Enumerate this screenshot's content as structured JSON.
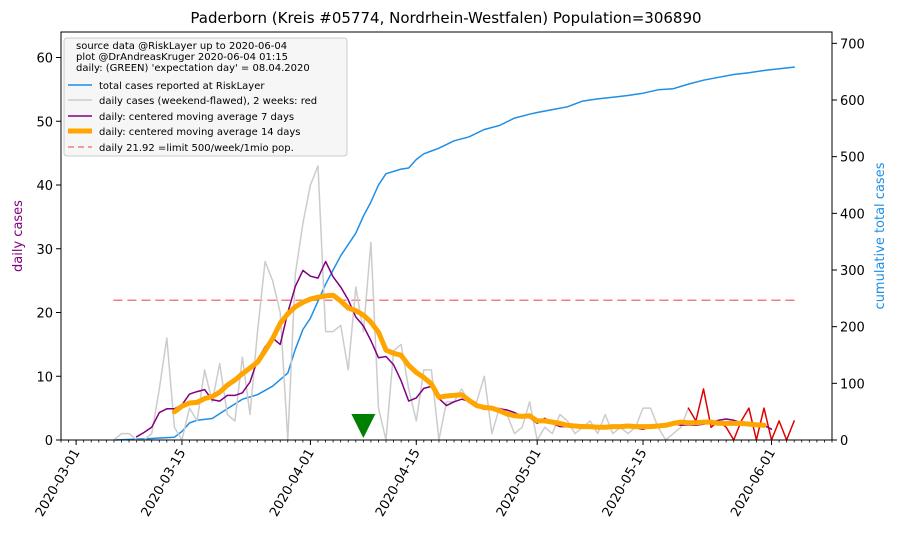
{
  "chart_data": {
    "type": "line",
    "title": "Paderborn (Kreis #05774, Nordrhein-Westfalen) Population=306890",
    "ylabel_left": "daily cases",
    "ylabel_right": "cumulative total cases",
    "xlim": [
      "2020-02-28",
      "2020-06-09"
    ],
    "ylim_left": [
      0,
      64
    ],
    "ylim_right": [
      0,
      720
    ],
    "x_ticks": [
      "2020-03-01",
      "2020-03-15",
      "2020-04-01",
      "2020-04-15",
      "2020-05-01",
      "2020-05-15",
      "2020-06-01"
    ],
    "y_ticks_left": [
      0,
      10,
      20,
      30,
      40,
      50,
      60
    ],
    "y_ticks_right": [
      0,
      100,
      200,
      300,
      400,
      500,
      600,
      700
    ],
    "legend_placement": "top-left",
    "legend_text": [
      "source data @RiskLayer up to 2020-06-04",
      "plot @DrAndreasKruger 2020-06-04 01:15",
      "daily: (GREEN) 'expectation day' = 08.04.2020"
    ],
    "expectation_day": "2020-04-08",
    "colors": {
      "total": "#1e8ee6",
      "daily": "#cccccc",
      "daily_recent": "#e00000",
      "ma7": "#800080",
      "ma14": "#ffa500",
      "limit": "#f08080",
      "marker": "#008000",
      "left_label": "#800080",
      "right_label": "#1e8ee6"
    },
    "series": [
      {
        "name": "total cases reported at RiskLayer",
        "axis": "right",
        "dates": [
          "2020-03-06",
          "2020-03-10",
          "2020-03-14",
          "2020-03-15",
          "2020-03-16",
          "2020-03-17",
          "2020-03-19",
          "2020-03-21",
          "2020-03-23",
          "2020-03-25",
          "2020-03-27",
          "2020-03-29",
          "2020-03-30",
          "2020-03-31",
          "2020-04-01",
          "2020-04-02",
          "2020-04-03",
          "2020-04-04",
          "2020-04-05",
          "2020-04-06",
          "2020-04-07",
          "2020-04-08",
          "2020-04-09",
          "2020-04-10",
          "2020-04-11",
          "2020-04-13",
          "2020-04-14",
          "2020-04-15",
          "2020-04-16",
          "2020-04-17",
          "2020-04-18",
          "2020-04-20",
          "2020-04-22",
          "2020-04-24",
          "2020-04-26",
          "2020-04-28",
          "2020-04-30",
          "2020-05-01",
          "2020-05-03",
          "2020-05-05",
          "2020-05-07",
          "2020-05-09",
          "2020-05-11",
          "2020-05-13",
          "2020-05-15",
          "2020-05-17",
          "2020-05-19",
          "2020-05-21",
          "2020-05-23",
          "2020-05-25",
          "2020-05-27",
          "2020-05-29",
          "2020-05-31",
          "2020-06-02",
          "2020-06-04"
        ],
        "values": [
          0,
          2,
          5,
          15,
          30,
          35,
          38,
          55,
          72,
          80,
          95,
          118,
          160,
          195,
          215,
          245,
          275,
          300,
          325,
          345,
          365,
          395,
          420,
          450,
          470,
          478,
          480,
          495,
          505,
          510,
          515,
          528,
          535,
          548,
          555,
          568,
          575,
          578,
          583,
          588,
          598,
          602,
          605,
          608,
          612,
          618,
          620,
          628,
          635,
          640,
          645,
          648,
          652,
          655,
          658
        ]
      },
      {
        "name": "daily cases (weekend-flawed), 2 weeks: red",
        "axis": "left",
        "dates": [
          "2020-03-06",
          "2020-03-07",
          "2020-03-08",
          "2020-03-09",
          "2020-03-10",
          "2020-03-11",
          "2020-03-12",
          "2020-03-13",
          "2020-03-14",
          "2020-03-15",
          "2020-03-16",
          "2020-03-17",
          "2020-03-18",
          "2020-03-19",
          "2020-03-20",
          "2020-03-21",
          "2020-03-22",
          "2020-03-23",
          "2020-03-24",
          "2020-03-25",
          "2020-03-26",
          "2020-03-27",
          "2020-03-28",
          "2020-03-29",
          "2020-03-30",
          "2020-03-31",
          "2020-04-01",
          "2020-04-02",
          "2020-04-03",
          "2020-04-04",
          "2020-04-05",
          "2020-04-06",
          "2020-04-07",
          "2020-04-08",
          "2020-04-09",
          "2020-04-10",
          "2020-04-11",
          "2020-04-12",
          "2020-04-13",
          "2020-04-14",
          "2020-04-15",
          "2020-04-16",
          "2020-04-17",
          "2020-04-18",
          "2020-04-19",
          "2020-04-20",
          "2020-04-21",
          "2020-04-22",
          "2020-04-23",
          "2020-04-24",
          "2020-04-25",
          "2020-04-26",
          "2020-04-27",
          "2020-04-28",
          "2020-04-29",
          "2020-04-30",
          "2020-05-01",
          "2020-05-02",
          "2020-05-03",
          "2020-05-04",
          "2020-05-05",
          "2020-05-06",
          "2020-05-07",
          "2020-05-08",
          "2020-05-09",
          "2020-05-10",
          "2020-05-11",
          "2020-05-12",
          "2020-05-13",
          "2020-05-14",
          "2020-05-15",
          "2020-05-16",
          "2020-05-17",
          "2020-05-18",
          "2020-05-19",
          "2020-05-20",
          "2020-05-21"
        ],
        "values": [
          0,
          1,
          1,
          0,
          0,
          1,
          8,
          16,
          2,
          0,
          5,
          3,
          11,
          6,
          12,
          4,
          3,
          13,
          4,
          17,
          28,
          25,
          20,
          0,
          26,
          34,
          40,
          43,
          17,
          17,
          18,
          11,
          24,
          17,
          31,
          5,
          0,
          14,
          15,
          8,
          3,
          11,
          11,
          0,
          6,
          6,
          8,
          6,
          6,
          10,
          1,
          5,
          4,
          1,
          2,
          6,
          0,
          2,
          1,
          4,
          3,
          1,
          2,
          3,
          1,
          4,
          1,
          2,
          1,
          2,
          5,
          5,
          2,
          0,
          1,
          2,
          5
        ]
      },
      {
        "name": "daily cases (weekend-flawed), 2 weeks: red",
        "axis": "left",
        "dates": [
          "2020-05-21",
          "2020-05-22",
          "2020-05-23",
          "2020-05-24",
          "2020-05-25",
          "2020-05-26",
          "2020-05-27",
          "2020-05-28",
          "2020-05-29",
          "2020-05-30",
          "2020-05-31",
          "2020-06-01",
          "2020-06-02",
          "2020-06-03",
          "2020-06-04"
        ],
        "values": [
          5,
          3,
          8,
          2,
          3,
          2,
          0,
          3,
          5,
          0,
          5,
          0,
          3,
          0,
          3
        ]
      },
      {
        "name": "daily: centered moving average 7 days",
        "axis": "left",
        "dates": [
          "2020-03-09",
          "2020-03-10",
          "2020-03-11",
          "2020-03-12",
          "2020-03-13",
          "2020-03-14",
          "2020-03-15",
          "2020-03-16",
          "2020-03-17",
          "2020-03-18",
          "2020-03-19",
          "2020-03-20",
          "2020-03-21",
          "2020-03-22",
          "2020-03-23",
          "2020-03-24",
          "2020-03-25",
          "2020-03-26",
          "2020-03-27",
          "2020-03-28",
          "2020-03-29",
          "2020-03-30",
          "2020-03-31",
          "2020-04-01",
          "2020-04-02",
          "2020-04-03",
          "2020-04-04",
          "2020-04-05",
          "2020-04-06",
          "2020-04-07",
          "2020-04-08",
          "2020-04-09",
          "2020-04-10",
          "2020-04-11",
          "2020-04-12",
          "2020-04-13",
          "2020-04-14",
          "2020-04-15",
          "2020-04-16",
          "2020-04-17",
          "2020-04-18",
          "2020-04-19",
          "2020-04-20",
          "2020-04-21",
          "2020-04-22",
          "2020-04-23",
          "2020-04-24",
          "2020-04-25",
          "2020-04-26",
          "2020-04-27",
          "2020-04-28",
          "2020-04-29",
          "2020-04-30",
          "2020-05-01",
          "2020-05-02",
          "2020-05-03",
          "2020-05-04",
          "2020-05-05",
          "2020-05-06",
          "2020-05-07",
          "2020-05-08",
          "2020-05-09",
          "2020-05-10",
          "2020-05-11",
          "2020-05-12",
          "2020-05-13",
          "2020-05-14",
          "2020-05-15",
          "2020-05-16",
          "2020-05-17",
          "2020-05-18",
          "2020-05-19",
          "2020-05-20",
          "2020-05-21",
          "2020-05-22",
          "2020-05-23",
          "2020-05-24",
          "2020-05-25",
          "2020-05-26",
          "2020-05-27",
          "2020-05-28",
          "2020-05-29",
          "2020-05-30",
          "2020-05-31",
          "2020-06-01"
        ],
        "values": [
          0.5,
          1.2,
          2.0,
          4.3,
          4.9,
          4.9,
          5.5,
          7.2,
          7.6,
          7.9,
          6.3,
          6.1,
          7.0,
          7.0,
          7.4,
          9.1,
          12.6,
          14.6,
          16.0,
          15.0,
          20.0,
          24.1,
          26.6,
          25.7,
          25.4,
          28.0,
          25.6,
          24.0,
          22.0,
          19.3,
          17.9,
          15.6,
          12.9,
          13.1,
          11.8,
          9.3,
          6.1,
          6.6,
          8.1,
          8.4,
          6.5,
          5.4,
          6.0,
          6.4,
          6.1,
          5.4,
          4.8,
          5.1,
          4.9,
          4.7,
          4.3,
          3.7,
          3.5,
          2.6,
          3.4,
          2.6,
          2.1,
          2.1,
          2.0,
          2.4,
          2.0,
          1.9,
          1.9,
          2.1,
          1.9,
          2.3,
          1.9,
          1.7,
          2.0,
          2.4,
          2.3,
          2.6,
          2.3,
          2.4,
          2.3,
          2.5,
          2.7,
          3.1,
          3.3,
          3.1,
          2.7,
          2.7,
          2.4,
          2.3,
          1.7
        ]
      },
      {
        "name": "daily: centered moving average 14 days",
        "axis": "left",
        "dates": [
          "2020-03-14",
          "2020-03-15",
          "2020-03-16",
          "2020-03-17",
          "2020-03-18",
          "2020-03-19",
          "2020-03-20",
          "2020-03-21",
          "2020-03-22",
          "2020-03-23",
          "2020-03-24",
          "2020-03-25",
          "2020-03-26",
          "2020-03-27",
          "2020-03-28",
          "2020-03-29",
          "2020-03-30",
          "2020-03-31",
          "2020-04-01",
          "2020-04-02",
          "2020-04-03",
          "2020-04-04",
          "2020-04-05",
          "2020-04-06",
          "2020-04-07",
          "2020-04-08",
          "2020-04-09",
          "2020-04-10",
          "2020-04-11",
          "2020-04-12",
          "2020-04-13",
          "2020-04-14",
          "2020-04-15",
          "2020-04-16",
          "2020-04-17",
          "2020-04-18",
          "2020-04-19",
          "2020-04-20",
          "2020-04-21",
          "2020-04-22",
          "2020-04-23",
          "2020-04-24",
          "2020-04-25",
          "2020-04-26",
          "2020-04-27",
          "2020-04-28",
          "2020-04-29",
          "2020-04-30",
          "2020-05-01",
          "2020-05-02",
          "2020-05-03",
          "2020-05-04",
          "2020-05-05",
          "2020-05-06",
          "2020-05-07",
          "2020-05-08",
          "2020-05-09",
          "2020-05-10",
          "2020-05-11",
          "2020-05-12",
          "2020-05-13",
          "2020-05-14",
          "2020-05-15",
          "2020-05-16",
          "2020-05-17",
          "2020-05-18",
          "2020-05-19",
          "2020-05-20",
          "2020-05-21",
          "2020-05-22",
          "2020-05-23",
          "2020-05-24",
          "2020-05-25",
          "2020-05-26",
          "2020-05-27",
          "2020-05-28",
          "2020-05-29",
          "2020-05-30",
          "2020-05-31"
        ],
        "values": [
          4.4,
          5.3,
          5.8,
          5.9,
          6.5,
          6.8,
          7.5,
          8.6,
          9.4,
          10.4,
          11.3,
          12.2,
          14.0,
          15.9,
          18.3,
          19.8,
          20.9,
          21.6,
          22.1,
          22.4,
          22.6,
          22.7,
          21.8,
          20.7,
          20.3,
          19.6,
          18.5,
          16.9,
          14.1,
          13.6,
          13.3,
          11.7,
          10.6,
          9.8,
          8.8,
          6.7,
          6.9,
          7.0,
          7.1,
          6.2,
          5.4,
          5.1,
          5.0,
          4.6,
          4.1,
          3.8,
          3.7,
          3.8,
          3.0,
          3.0,
          2.8,
          2.6,
          2.3,
          2.2,
          2.1,
          2.1,
          2.0,
          2.0,
          2.1,
          2.1,
          2.2,
          2.1,
          2.1,
          2.1,
          2.2,
          2.3,
          2.6,
          2.8,
          2.7,
          2.7,
          2.8,
          2.8,
          2.6,
          2.6,
          2.6,
          2.6,
          2.5,
          2.4,
          2.3
        ]
      },
      {
        "name": "daily 21.92 =limit 500/week/1mio pop.",
        "axis": "left",
        "dates": [
          "2020-03-06",
          "2020-06-04"
        ],
        "values": [
          21.92,
          21.92
        ]
      }
    ]
  }
}
